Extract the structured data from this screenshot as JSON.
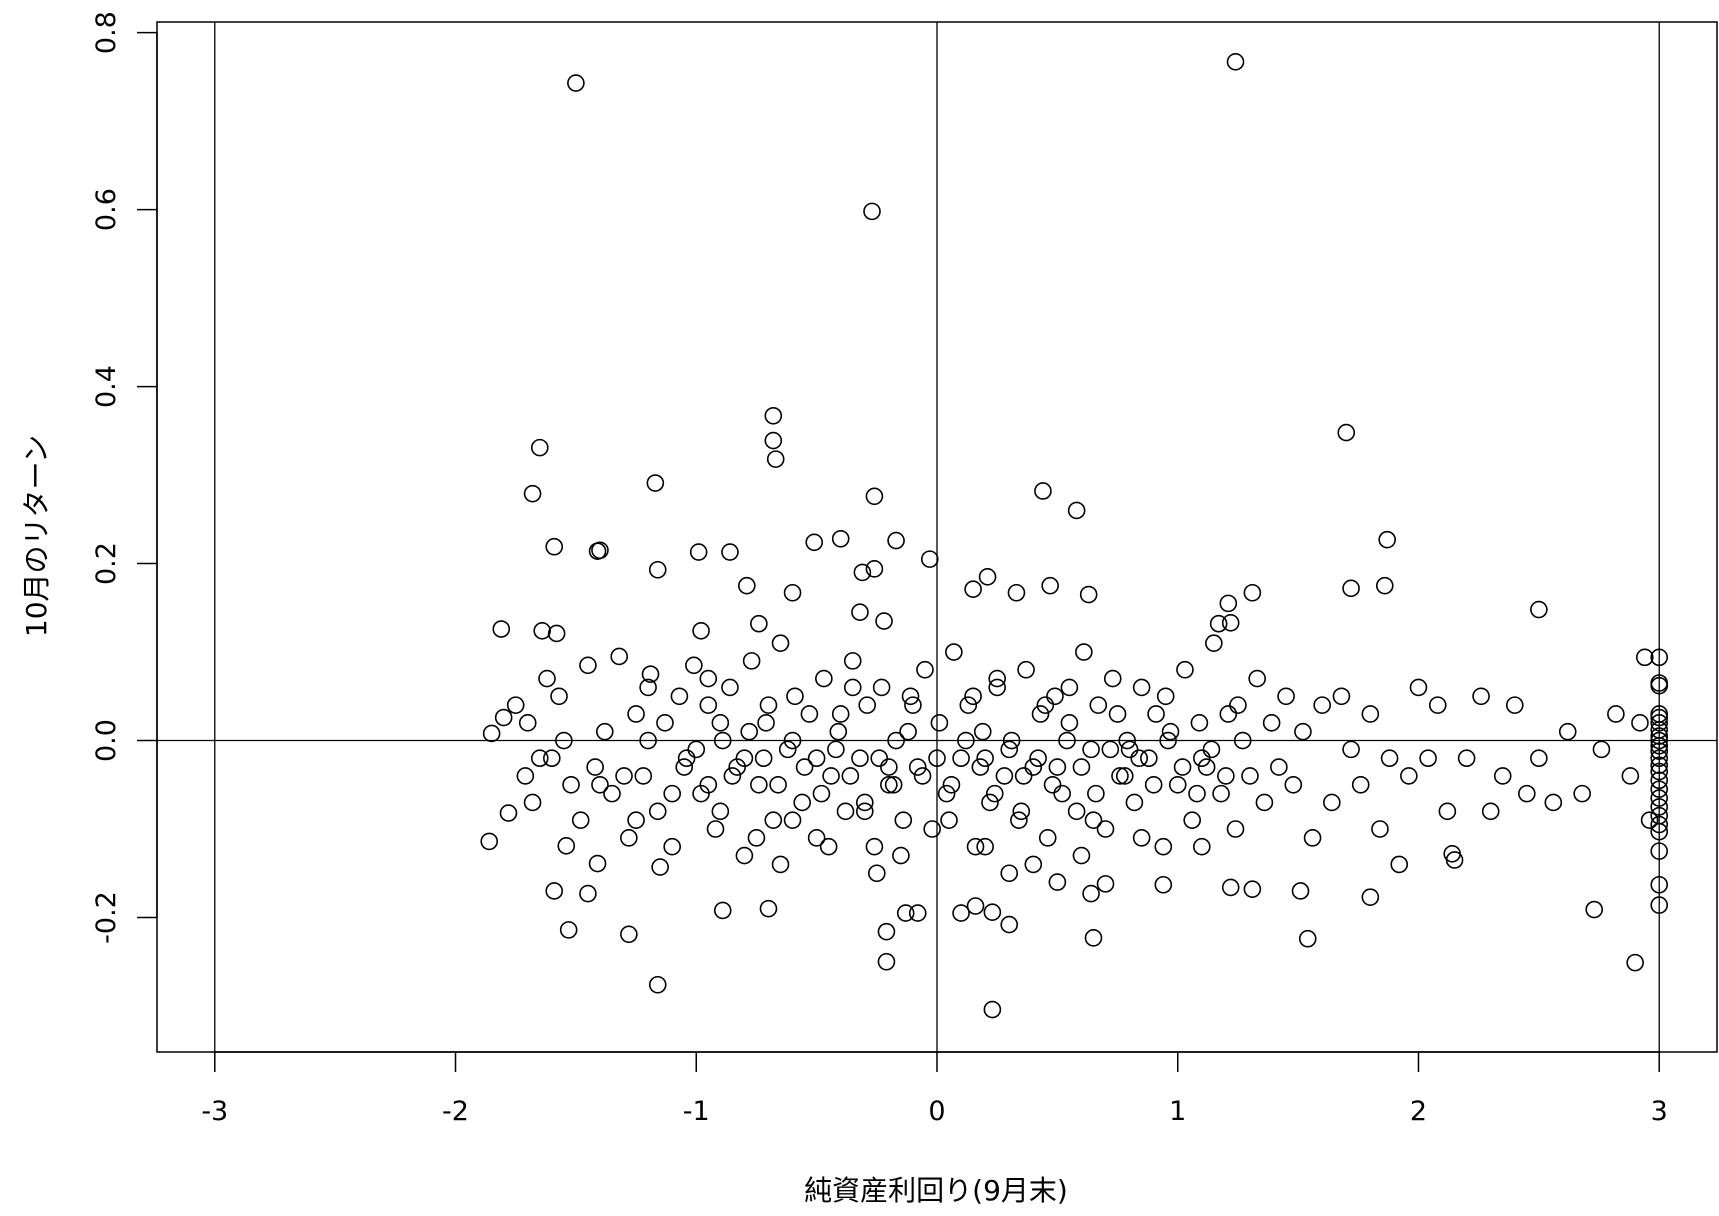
{
  "chart_data": {
    "type": "scatter",
    "xlabel": "純資産利回り(9月末)",
    "ylabel": "10月のリターン",
    "xlim": [
      -3.24,
      3.24
    ],
    "ylim": [
      -0.352,
      0.812
    ],
    "xticks": [
      -3,
      -2,
      -1,
      0,
      1,
      2,
      3
    ],
    "xtick_labels": [
      "-3",
      "-2",
      "-1",
      "0",
      "1",
      "2",
      "3"
    ],
    "yticks": [
      -0.2,
      0.0,
      0.2,
      0.4,
      0.6,
      0.8
    ],
    "ytick_labels": [
      "-0.2",
      "0.0",
      "0.2",
      "0.4",
      "0.6",
      "0.8"
    ],
    "reference_lines": {
      "vertical": [
        -3,
        0,
        3
      ],
      "horizontal": [
        0
      ]
    },
    "grid": false,
    "legend": "none",
    "marker": "open-circle",
    "points": [
      [
        -1.5,
        0.743
      ],
      [
        1.24,
        0.767
      ],
      [
        -0.27,
        0.598
      ],
      [
        -0.68,
        0.367
      ],
      [
        -0.68,
        0.339
      ],
      [
        -0.67,
        0.318
      ],
      [
        -1.65,
        0.331
      ],
      [
        1.7,
        0.348
      ],
      [
        -1.68,
        0.279
      ],
      [
        -1.17,
        0.291
      ],
      [
        -0.26,
        0.276
      ],
      [
        0.44,
        0.282
      ],
      [
        0.58,
        0.26
      ],
      [
        -1.59,
        0.219
      ],
      [
        -1.41,
        0.214
      ],
      [
        -1.4,
        0.215
      ],
      [
        -0.99,
        0.213
      ],
      [
        -0.86,
        0.213
      ],
      [
        -0.51,
        0.224
      ],
      [
        -0.4,
        0.228
      ],
      [
        -0.17,
        0.226
      ],
      [
        -0.03,
        0.205
      ],
      [
        -1.16,
        0.193
      ],
      [
        -0.26,
        0.194
      ],
      [
        -0.31,
        0.19
      ],
      [
        0.21,
        0.185
      ],
      [
        0.15,
        0.171
      ],
      [
        0.33,
        0.167
      ],
      [
        0.47,
        0.175
      ],
      [
        0.63,
        0.165
      ],
      [
        1.21,
        0.155
      ],
      [
        1.31,
        0.167
      ],
      [
        1.72,
        0.172
      ],
      [
        1.86,
        0.175
      ],
      [
        1.87,
        0.227
      ],
      [
        2.5,
        0.148
      ],
      [
        -0.79,
        0.175
      ],
      [
        -0.6,
        0.167
      ],
      [
        -0.32,
        0.145
      ],
      [
        -0.22,
        0.135
      ],
      [
        -1.81,
        0.126
      ],
      [
        -1.64,
        0.124
      ],
      [
        -1.58,
        0.121
      ],
      [
        -0.98,
        0.124
      ],
      [
        -0.74,
        0.132
      ],
      [
        1.17,
        0.132
      ],
      [
        1.22,
        0.133
      ],
      [
        2.94,
        0.094
      ],
      [
        -1.86,
        -0.114
      ],
      [
        -1.54,
        -0.119
      ],
      [
        -1.16,
        -0.276
      ],
      [
        -1.28,
        -0.219
      ],
      [
        -1.53,
        -0.214
      ],
      [
        -1.45,
        -0.173
      ],
      [
        -1.59,
        -0.17
      ],
      [
        -0.7,
        -0.19
      ],
      [
        -0.89,
        -0.192
      ],
      [
        -0.13,
        -0.195
      ],
      [
        -0.08,
        -0.195
      ],
      [
        -0.21,
        -0.216
      ],
      [
        -0.21,
        -0.25
      ],
      [
        0.1,
        -0.195
      ],
      [
        0.16,
        -0.187
      ],
      [
        0.23,
        -0.194
      ],
      [
        0.3,
        -0.208
      ],
      [
        0.23,
        -0.304
      ],
      [
        0.65,
        -0.223
      ],
      [
        1.54,
        -0.224
      ],
      [
        2.73,
        -0.191
      ],
      [
        2.9,
        -0.251
      ],
      [
        1.8,
        -0.177
      ],
      [
        1.51,
        -0.17
      ],
      [
        1.31,
        -0.168
      ],
      [
        1.22,
        -0.166
      ],
      [
        0.94,
        -0.163
      ],
      [
        0.7,
        -0.162
      ],
      [
        0.64,
        -0.173
      ],
      [
        2.14,
        -0.128
      ],
      [
        2.15,
        -0.135
      ],
      [
        -1.15,
        -0.143
      ],
      [
        -1.41,
        -0.139
      ],
      [
        -1.78,
        -0.082
      ],
      [
        -1.85,
        0.008
      ],
      [
        -1.8,
        0.026
      ],
      [
        -1.75,
        0.04
      ],
      [
        -1.71,
        -0.04
      ],
      [
        -1.68,
        -0.07
      ],
      [
        -1.62,
        0.07
      ],
      [
        -1.6,
        -0.02
      ],
      [
        -1.57,
        0.05
      ],
      [
        -1.52,
        -0.05
      ],
      [
        -1.48,
        -0.09
      ],
      [
        -1.45,
        0.085
      ],
      [
        -1.42,
        -0.03
      ],
      [
        -1.38,
        0.01
      ],
      [
        -1.35,
        -0.06
      ],
      [
        -1.32,
        0.095
      ],
      [
        -1.28,
        -0.11
      ],
      [
        -1.25,
        0.03
      ],
      [
        -1.22,
        -0.04
      ],
      [
        -1.19,
        0.075
      ],
      [
        -1.16,
        -0.08
      ],
      [
        -1.13,
        0.02
      ],
      [
        -1.1,
        -0.12
      ],
      [
        -1.07,
        0.05
      ],
      [
        -1.04,
        -0.02
      ],
      [
        -1.01,
        0.085
      ],
      [
        -0.98,
        -0.06
      ],
      [
        -0.95,
        0.04
      ],
      [
        -0.92,
        -0.1
      ],
      [
        -0.89,
        0.0
      ],
      [
        -0.86,
        0.06
      ],
      [
        -0.83,
        -0.03
      ],
      [
        -0.8,
        -0.13
      ],
      [
        -0.77,
        0.09
      ],
      [
        -0.74,
        -0.05
      ],
      [
        -0.71,
        0.02
      ],
      [
        -0.68,
        -0.09
      ],
      [
        -0.65,
        0.11
      ],
      [
        -0.62,
        -0.01
      ],
      [
        -0.59,
        0.05
      ],
      [
        -0.56,
        -0.07
      ],
      [
        -0.53,
        0.03
      ],
      [
        -0.5,
        -0.11
      ],
      [
        -0.47,
        0.07
      ],
      [
        -0.44,
        -0.04
      ],
      [
        -0.41,
        0.01
      ],
      [
        -0.38,
        -0.08
      ],
      [
        -0.35,
        0.09
      ],
      [
        -0.32,
        -0.02
      ],
      [
        -0.29,
        0.04
      ],
      [
        -0.26,
        -0.12
      ],
      [
        -0.23,
        0.06
      ],
      [
        -0.2,
        -0.05
      ],
      [
        -0.17,
        0.0
      ],
      [
        -0.14,
        -0.09
      ],
      [
        -0.11,
        0.05
      ],
      [
        -0.08,
        -0.03
      ],
      [
        -0.05,
        0.08
      ],
      [
        -0.02,
        -0.1
      ],
      [
        0.01,
        0.02
      ],
      [
        0.04,
        -0.06
      ],
      [
        0.07,
        0.1
      ],
      [
        0.1,
        -0.02
      ],
      [
        0.13,
        0.04
      ],
      [
        0.16,
        -0.12
      ],
      [
        0.19,
        0.01
      ],
      [
        0.22,
        -0.07
      ],
      [
        0.25,
        0.06
      ],
      [
        0.28,
        -0.04
      ],
      [
        0.31,
        0.0
      ],
      [
        0.34,
        -0.09
      ],
      [
        0.37,
        0.08
      ],
      [
        0.4,
        -0.03
      ],
      [
        0.43,
        0.03
      ],
      [
        0.46,
        -0.11
      ],
      [
        0.49,
        0.05
      ],
      [
        0.52,
        -0.06
      ],
      [
        0.55,
        0.02
      ],
      [
        0.58,
        -0.08
      ],
      [
        0.61,
        0.1
      ],
      [
        0.64,
        -0.01
      ],
      [
        0.67,
        0.04
      ],
      [
        0.7,
        -0.1
      ],
      [
        0.73,
        0.07
      ],
      [
        0.76,
        -0.04
      ],
      [
        0.79,
        0.0
      ],
      [
        0.82,
        -0.07
      ],
      [
        0.85,
        0.06
      ],
      [
        0.88,
        -0.02
      ],
      [
        0.91,
        0.03
      ],
      [
        0.94,
        -0.12
      ],
      [
        0.97,
        0.01
      ],
      [
        1.0,
        -0.05
      ],
      [
        1.03,
        0.08
      ],
      [
        1.06,
        -0.09
      ],
      [
        1.09,
        0.02
      ],
      [
        1.12,
        -0.03
      ],
      [
        1.15,
        0.11
      ],
      [
        1.18,
        -0.06
      ],
      [
        1.21,
        0.03
      ],
      [
        1.24,
        -0.1
      ],
      [
        1.27,
        0.0
      ],
      [
        1.3,
        -0.04
      ],
      [
        1.33,
        0.07
      ],
      [
        1.36,
        -0.07
      ],
      [
        1.39,
        0.02
      ],
      [
        1.42,
        -0.03
      ],
      [
        1.45,
        0.05
      ],
      [
        1.48,
        -0.05
      ],
      [
        1.52,
        0.01
      ],
      [
        1.56,
        -0.11
      ],
      [
        1.6,
        0.04
      ],
      [
        1.64,
        -0.07
      ],
      [
        1.68,
        0.05
      ],
      [
        1.72,
        -0.01
      ],
      [
        1.76,
        -0.05
      ],
      [
        1.8,
        0.03
      ],
      [
        1.84,
        -0.1
      ],
      [
        1.88,
        -0.02
      ],
      [
        1.92,
        -0.14
      ],
      [
        1.96,
        -0.04
      ],
      [
        2.0,
        0.06
      ],
      [
        2.04,
        -0.02
      ],
      [
        2.08,
        0.04
      ],
      [
        2.12,
        -0.08
      ],
      [
        2.2,
        -0.02
      ],
      [
        2.26,
        0.05
      ],
      [
        2.3,
        -0.08
      ],
      [
        2.35,
        -0.04
      ],
      [
        2.4,
        0.04
      ],
      [
        2.45,
        -0.06
      ],
      [
        2.5,
        -0.02
      ],
      [
        2.56,
        -0.07
      ],
      [
        2.62,
        0.01
      ],
      [
        2.68,
        -0.06
      ],
      [
        2.76,
        -0.01
      ],
      [
        2.82,
        0.03
      ],
      [
        2.88,
        -0.04
      ],
      [
        2.92,
        0.02
      ],
      [
        2.96,
        -0.09
      ],
      [
        -1.3,
        -0.04
      ],
      [
        -1.2,
        0.0
      ],
      [
        -1.05,
        -0.03
      ],
      [
        -0.95,
        -0.05
      ],
      [
        -0.9,
        0.02
      ],
      [
        -0.85,
        -0.04
      ],
      [
        -0.78,
        0.01
      ],
      [
        -0.72,
        -0.02
      ],
      [
        -0.66,
        -0.05
      ],
      [
        -0.6,
        0.0
      ],
      [
        -0.55,
        -0.03
      ],
      [
        -0.48,
        -0.06
      ],
      [
        -0.42,
        -0.01
      ],
      [
        -0.36,
        -0.04
      ],
      [
        -0.3,
        -0.07
      ],
      [
        -0.24,
        -0.02
      ],
      [
        -0.18,
        -0.05
      ],
      [
        -0.12,
        0.01
      ],
      [
        -0.06,
        -0.04
      ],
      [
        0.0,
        -0.02
      ],
      [
        0.06,
        -0.05
      ],
      [
        0.12,
        0.0
      ],
      [
        0.18,
        -0.03
      ],
      [
        0.24,
        -0.06
      ],
      [
        0.3,
        -0.01
      ],
      [
        0.36,
        -0.04
      ],
      [
        0.42,
        -0.02
      ],
      [
        0.48,
        -0.05
      ],
      [
        0.54,
        0.0
      ],
      [
        0.6,
        -0.03
      ],
      [
        0.66,
        -0.06
      ],
      [
        0.72,
        -0.01
      ],
      [
        0.78,
        -0.04
      ],
      [
        0.84,
        -0.02
      ],
      [
        0.9,
        -0.05
      ],
      [
        0.96,
        0.0
      ],
      [
        1.02,
        -0.03
      ],
      [
        1.08,
        -0.06
      ],
      [
        1.14,
        -0.01
      ],
      [
        1.2,
        -0.04
      ],
      [
        -1.0,
        -0.01
      ],
      [
        -0.8,
        -0.02
      ],
      [
        -0.5,
        -0.02
      ],
      [
        -0.2,
        -0.03
      ],
      [
        0.2,
        -0.02
      ],
      [
        0.5,
        -0.03
      ],
      [
        0.8,
        -0.01
      ],
      [
        1.1,
        -0.02
      ],
      [
        -0.7,
        0.04
      ],
      [
        -0.4,
        0.03
      ],
      [
        -0.1,
        0.04
      ],
      [
        0.15,
        0.05
      ],
      [
        0.45,
        0.04
      ],
      [
        0.75,
        0.03
      ],
      [
        -0.9,
        -0.08
      ],
      [
        -0.6,
        -0.09
      ],
      [
        -0.3,
        -0.08
      ],
      [
        0.05,
        -0.09
      ],
      [
        0.35,
        -0.08
      ],
      [
        0.65,
        -0.09
      ],
      [
        -1.1,
        -0.06
      ],
      [
        -1.2,
        0.06
      ],
      [
        -0.95,
        0.07
      ],
      [
        -0.35,
        0.06
      ],
      [
        0.25,
        0.07
      ],
      [
        0.55,
        0.06
      ],
      [
        0.95,
        0.05
      ],
      [
        1.25,
        0.04
      ],
      [
        -0.45,
        -0.12
      ],
      [
        -0.15,
        -0.13
      ],
      [
        0.2,
        -0.12
      ],
      [
        0.4,
        -0.14
      ],
      [
        0.6,
        -0.13
      ],
      [
        0.85,
        -0.11
      ],
      [
        1.1,
        -0.12
      ],
      [
        -0.65,
        -0.14
      ],
      [
        -0.25,
        -0.15
      ],
      [
        0.3,
        -0.15
      ],
      [
        0.5,
        -0.16
      ],
      [
        -0.75,
        -0.11
      ],
      [
        -1.25,
        -0.09
      ],
      [
        -1.4,
        -0.05
      ],
      [
        -1.55,
        0.0
      ],
      [
        -1.65,
        -0.02
      ],
      [
        -1.7,
        0.02
      ],
      [
        3.0,
        0.094
      ],
      [
        3.0,
        0.065
      ],
      [
        3.0,
        0.062
      ],
      [
        3.0,
        0.03
      ],
      [
        3.0,
        0.026
      ],
      [
        3.0,
        0.02
      ],
      [
        3.0,
        0.012
      ],
      [
        3.0,
        0.005
      ],
      [
        3.0,
        0.0
      ],
      [
        3.0,
        -0.006
      ],
      [
        3.0,
        -0.012
      ],
      [
        3.0,
        -0.02
      ],
      [
        3.0,
        -0.028
      ],
      [
        3.0,
        -0.035
      ],
      [
        3.0,
        -0.045
      ],
      [
        3.0,
        -0.055
      ],
      [
        3.0,
        -0.065
      ],
      [
        3.0,
        -0.075
      ],
      [
        3.0,
        -0.085
      ],
      [
        3.0,
        -0.095
      ],
      [
        3.0,
        -0.103
      ],
      [
        3.0,
        -0.125
      ],
      [
        3.0,
        -0.163
      ],
      [
        3.0,
        -0.186
      ]
    ]
  }
}
